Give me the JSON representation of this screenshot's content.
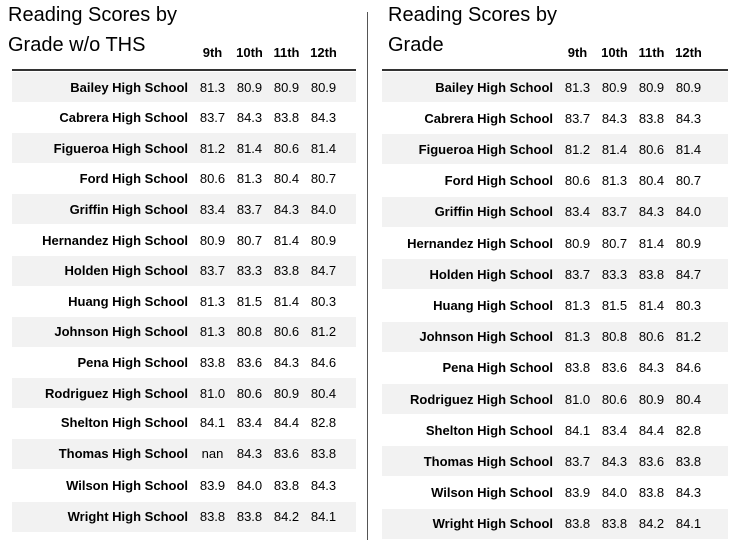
{
  "columns": [
    "9th",
    "10th",
    "11th",
    "12th"
  ],
  "left": {
    "title_line1": "Reading Scores by",
    "title_line2": "Grade w/o THS",
    "rows": [
      {
        "school": "Bailey High School",
        "values": [
          "81.3",
          "80.9",
          "80.9",
          "80.9"
        ]
      },
      {
        "school": "Cabrera High School",
        "values": [
          "83.7",
          "84.3",
          "83.8",
          "84.3"
        ]
      },
      {
        "school": "Figueroa High School",
        "values": [
          "81.2",
          "81.4",
          "80.6",
          "81.4"
        ]
      },
      {
        "school": "Ford High School",
        "values": [
          "80.6",
          "81.3",
          "80.4",
          "80.7"
        ]
      },
      {
        "school": "Griffin High School",
        "values": [
          "83.4",
          "83.7",
          "84.3",
          "84.0"
        ]
      },
      {
        "school": "Hernandez High School",
        "values": [
          "80.9",
          "80.7",
          "81.4",
          "80.9"
        ]
      },
      {
        "school": "Holden High School",
        "values": [
          "83.7",
          "83.3",
          "83.8",
          "84.7"
        ]
      },
      {
        "school": "Huang High School",
        "values": [
          "81.3",
          "81.5",
          "81.4",
          "80.3"
        ]
      },
      {
        "school": "Johnson High School",
        "values": [
          "81.3",
          "80.8",
          "80.6",
          "81.2"
        ]
      },
      {
        "school": "Pena High School",
        "values": [
          "83.8",
          "83.6",
          "84.3",
          "84.6"
        ]
      },
      {
        "school": "Rodriguez High School",
        "values": [
          "81.0",
          "80.6",
          "80.9",
          "80.4"
        ]
      },
      {
        "school": "Shelton High School",
        "values": [
          "84.1",
          "83.4",
          "84.4",
          "82.8"
        ]
      },
      {
        "school": "Thomas High School",
        "values": [
          "nan",
          "84.3",
          "83.6",
          "83.8"
        ]
      },
      {
        "school": "Wilson High School",
        "values": [
          "83.9",
          "84.0",
          "83.8",
          "84.3"
        ]
      },
      {
        "school": "Wright High School",
        "values": [
          "83.8",
          "83.8",
          "84.2",
          "84.1"
        ]
      }
    ]
  },
  "right": {
    "title_line1": "Reading Scores by",
    "title_line2": "Grade",
    "rows": [
      {
        "school": "Bailey High School",
        "values": [
          "81.3",
          "80.9",
          "80.9",
          "80.9"
        ]
      },
      {
        "school": "Cabrera High School",
        "values": [
          "83.7",
          "84.3",
          "83.8",
          "84.3"
        ]
      },
      {
        "school": "Figueroa High School",
        "values": [
          "81.2",
          "81.4",
          "80.6",
          "81.4"
        ]
      },
      {
        "school": "Ford High School",
        "values": [
          "80.6",
          "81.3",
          "80.4",
          "80.7"
        ]
      },
      {
        "school": "Griffin High School",
        "values": [
          "83.4",
          "83.7",
          "84.3",
          "84.0"
        ]
      },
      {
        "school": "Hernandez High School",
        "values": [
          "80.9",
          "80.7",
          "81.4",
          "80.9"
        ]
      },
      {
        "school": "Holden High School",
        "values": [
          "83.7",
          "83.3",
          "83.8",
          "84.7"
        ]
      },
      {
        "school": "Huang High School",
        "values": [
          "81.3",
          "81.5",
          "81.4",
          "80.3"
        ]
      },
      {
        "school": "Johnson High School",
        "values": [
          "81.3",
          "80.8",
          "80.6",
          "81.2"
        ]
      },
      {
        "school": "Pena High School",
        "values": [
          "83.8",
          "83.6",
          "84.3",
          "84.6"
        ]
      },
      {
        "school": "Rodriguez High School",
        "values": [
          "81.0",
          "80.6",
          "80.9",
          "80.4"
        ]
      },
      {
        "school": "Shelton High School",
        "values": [
          "84.1",
          "83.4",
          "84.4",
          "82.8"
        ]
      },
      {
        "school": "Thomas High School",
        "values": [
          "83.7",
          "84.3",
          "83.6",
          "83.8"
        ]
      },
      {
        "school": "Wilson High School",
        "values": [
          "83.9",
          "84.0",
          "83.8",
          "84.3"
        ]
      },
      {
        "school": "Wright High School",
        "values": [
          "83.8",
          "83.8",
          "84.2",
          "84.1"
        ]
      }
    ]
  }
}
